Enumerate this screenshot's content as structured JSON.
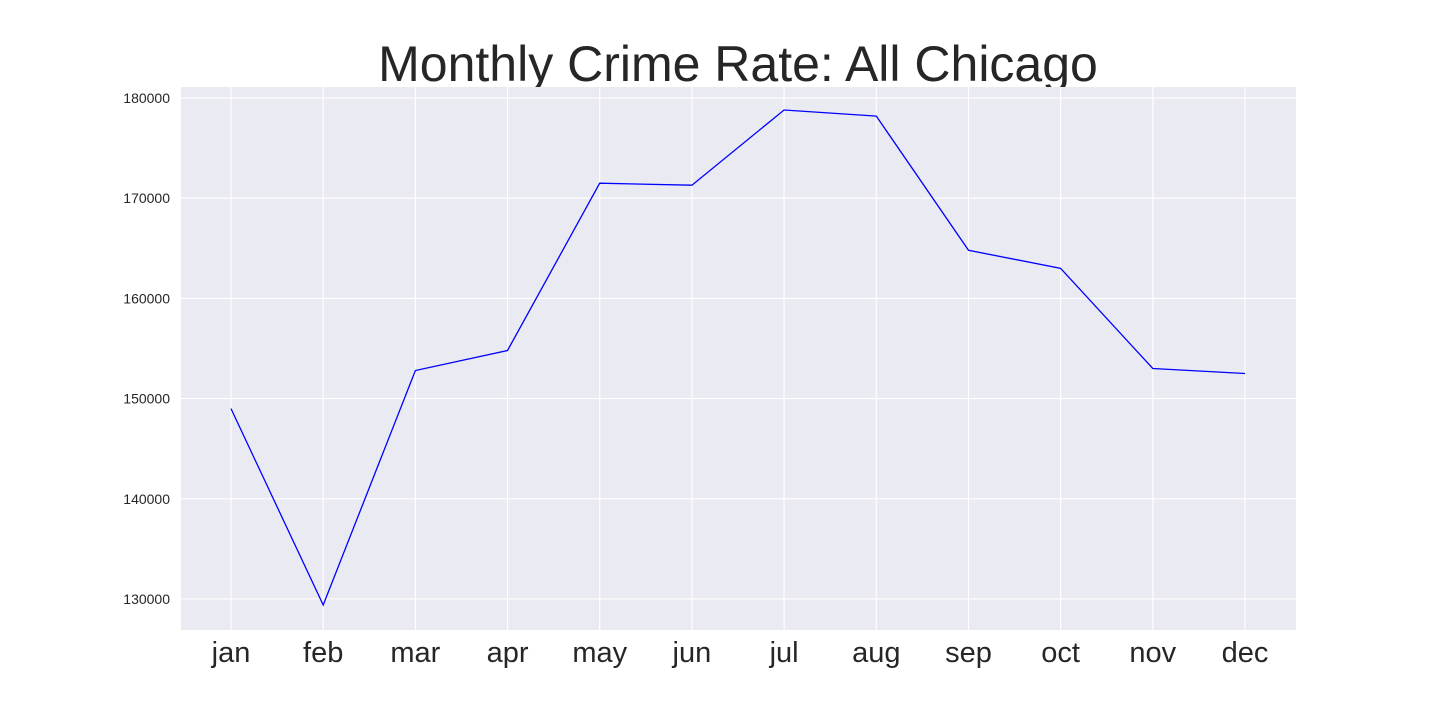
{
  "chart_data": {
    "type": "line",
    "title": "Monthly Crime Rate: All Chicago",
    "xlabel": "",
    "ylabel": "",
    "categories": [
      "jan",
      "feb",
      "mar",
      "apr",
      "may",
      "jun",
      "jul",
      "aug",
      "sep",
      "oct",
      "nov",
      "dec"
    ],
    "series": [
      {
        "values": [
          149000,
          129400,
          152800,
          154800,
          171500,
          171300,
          178800,
          178200,
          164800,
          163000,
          153000,
          152500
        ],
        "color": "#0000ff"
      }
    ],
    "yticks": [
      130000,
      140000,
      150000,
      160000,
      170000,
      180000
    ],
    "ytick_labels": [
      "130000",
      "140000",
      "150000",
      "160000",
      "170000",
      "180000"
    ],
    "ylim": [
      126900,
      181100
    ],
    "grid": true,
    "background_color": "#eaeaf2",
    "grid_color": "#ffffff",
    "legend": "none"
  }
}
